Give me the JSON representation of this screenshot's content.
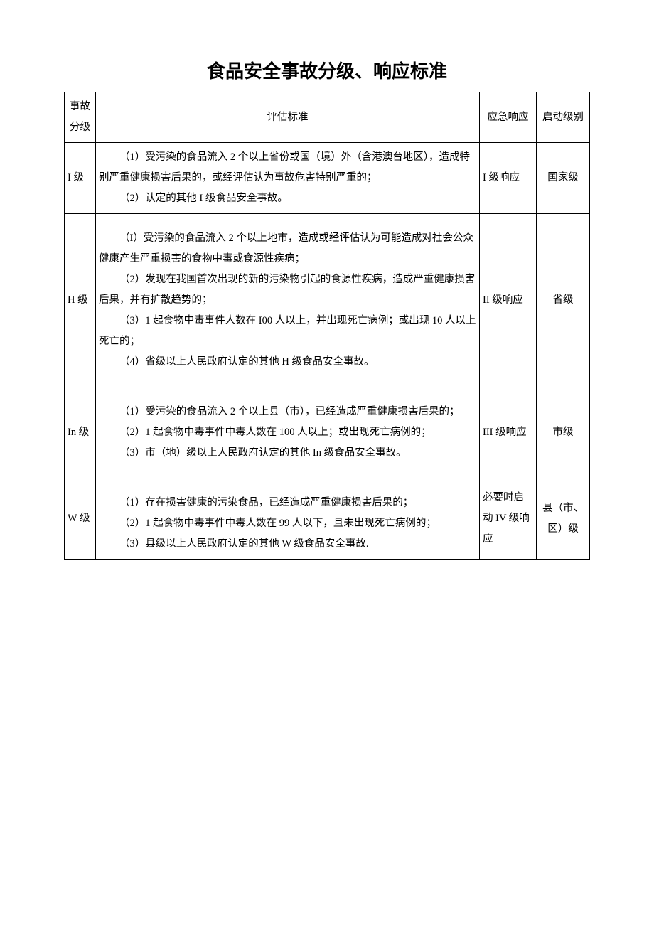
{
  "title": "食品安全事故分级、响应标准",
  "headers": {
    "level": "事故分级",
    "criteria": "评估标准",
    "response": "应急响应",
    "activate": "启动级别"
  },
  "rows": [
    {
      "level": "I 级",
      "criteria": [
        "（1）受污染的食品流入 2 个以上省份或国（境）外（含港澳台地区），造成特别严重健康损害后果的，或经评估认为事故危害特别严重的；",
        "（2）认定的其他 I 级食品安全事故。"
      ],
      "response": "I 级响应",
      "activate": "国家级"
    },
    {
      "level": "H 级",
      "criteria": [
        "（I）受污染的食品流入 2 个以上地市，造成或经评估认为可能造成对社会公众健康产生严重损害的食物中毒或食源性疾病；",
        "（2）发现在我国首次出现的新的污染物引起的食源性疾病，造成严重健康损害后果，并有扩散趋势的；",
        "（3）1 起食物中毒事件人数在 I00 人以上，并出现死亡病例；或出现 10 人以上死亡的；",
        "（4）省级以上人民政府认定的其他 H 级食品安全事故。"
      ],
      "response": "II 级响应",
      "activate": "省级"
    },
    {
      "level": "In 级",
      "criteria": [
        "（1）受污染的食品流入 2 个以上县（市），已经造成严重健康损害后果的；",
        "（2）1 起食物中毒事件中毒人数在 100 人以上；或出现死亡病例的；",
        "（3）市（地）级以上人民政府认定的其他 In 级食品安全事故。"
      ],
      "response": "III 级响应",
      "activate": "市级"
    },
    {
      "level": "W 级",
      "criteria": [
        "（1）存在损害健康的污染食品，已经造成严重健康损害后果的；",
        "（2）1 起食物中毒事件中毒人数在 99 人以下，且未出现死亡病例的；",
        "（3）县级以上人民政府认定的其他 W 级食品安全事故."
      ],
      "response": "必要时启动 IV 级响应",
      "activate": "县（市、区）级"
    }
  ]
}
